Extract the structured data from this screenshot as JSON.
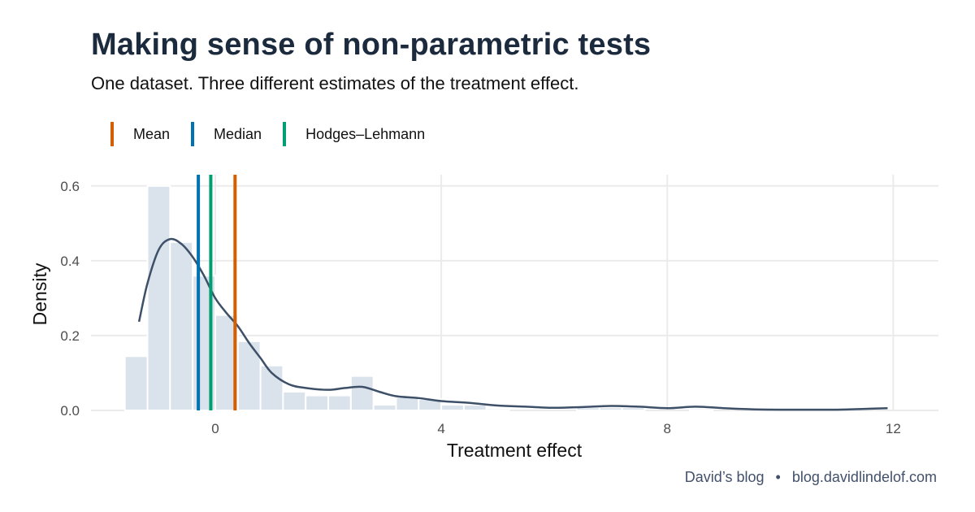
{
  "header": {
    "title": "Making sense of non-parametric tests",
    "subtitle": "One dataset. Three different estimates of the treatment effect."
  },
  "legend": {
    "items": [
      {
        "label": "Mean",
        "color": "#d55e00"
      },
      {
        "label": "Median",
        "color": "#0072b2"
      },
      {
        "label": "Hodges–Lehmann",
        "color": "#009e73"
      }
    ]
  },
  "caption": {
    "blog_name": "David’s blog",
    "separator": "•",
    "url": "blog.davidlindelof.com"
  },
  "chart_data": {
    "type": "bar",
    "xlabel": "Treatment effect",
    "ylabel": "Density",
    "xlim": [
      -2.2,
      12.8
    ],
    "ylim": [
      0,
      0.63
    ],
    "x_ticks": [
      0,
      4,
      8,
      12
    ],
    "y_ticks": [
      0.0,
      0.2,
      0.4,
      0.6
    ],
    "x_tick_labels": [
      "0",
      "4",
      "8",
      "12"
    ],
    "y_tick_labels": [
      "0.0",
      "0.2",
      "0.4",
      "0.6"
    ],
    "grid": true,
    "histogram": {
      "bin_width": 0.4,
      "color": "#dae2ec",
      "bins": [
        {
          "x": -1.4,
          "density": 0.145
        },
        {
          "x": -1.0,
          "density": 0.6
        },
        {
          "x": -0.6,
          "density": 0.45
        },
        {
          "x": -0.2,
          "density": 0.36
        },
        {
          "x": 0.2,
          "density": 0.255
        },
        {
          "x": 0.6,
          "density": 0.185
        },
        {
          "x": 1.0,
          "density": 0.12
        },
        {
          "x": 1.4,
          "density": 0.05
        },
        {
          "x": 1.8,
          "density": 0.04
        },
        {
          "x": 2.2,
          "density": 0.04
        },
        {
          "x": 2.6,
          "density": 0.092
        },
        {
          "x": 3.0,
          "density": 0.015
        },
        {
          "x": 3.4,
          "density": 0.035
        },
        {
          "x": 3.8,
          "density": 0.03
        },
        {
          "x": 4.2,
          "density": 0.015
        },
        {
          "x": 4.6,
          "density": 0.015
        },
        {
          "x": 5.0,
          "density": 0.005
        },
        {
          "x": 6.6,
          "density": 0.008
        },
        {
          "x": 7.0,
          "density": 0.008
        },
        {
          "x": 7.4,
          "density": 0.008
        },
        {
          "x": 8.6,
          "density": 0.005
        }
      ]
    },
    "density_curve": {
      "color": "#3d5068",
      "points": [
        [
          -1.35,
          0.237
        ],
        [
          -1.2,
          0.34
        ],
        [
          -1.0,
          0.43
        ],
        [
          -0.8,
          0.458
        ],
        [
          -0.6,
          0.445
        ],
        [
          -0.4,
          0.41
        ],
        [
          -0.2,
          0.36
        ],
        [
          0.0,
          0.3
        ],
        [
          0.2,
          0.26
        ],
        [
          0.4,
          0.225
        ],
        [
          0.6,
          0.18
        ],
        [
          0.8,
          0.14
        ],
        [
          1.0,
          0.1
        ],
        [
          1.3,
          0.07
        ],
        [
          1.6,
          0.06
        ],
        [
          2.0,
          0.055
        ],
        [
          2.3,
          0.06
        ],
        [
          2.6,
          0.063
        ],
        [
          2.9,
          0.05
        ],
        [
          3.2,
          0.038
        ],
        [
          3.6,
          0.033
        ],
        [
          4.0,
          0.025
        ],
        [
          4.5,
          0.02
        ],
        [
          5.0,
          0.013
        ],
        [
          5.5,
          0.01
        ],
        [
          6.0,
          0.007
        ],
        [
          6.5,
          0.009
        ],
        [
          7.0,
          0.012
        ],
        [
          7.5,
          0.01
        ],
        [
          8.0,
          0.006
        ],
        [
          8.5,
          0.01
        ],
        [
          9.0,
          0.006
        ],
        [
          9.5,
          0.003
        ],
        [
          10.0,
          0.002
        ],
        [
          10.5,
          0.002
        ],
        [
          11.0,
          0.002
        ],
        [
          11.5,
          0.004
        ],
        [
          11.9,
          0.006
        ]
      ]
    },
    "reference_lines": [
      {
        "name": "Mean",
        "x": 0.35,
        "color": "#d55e00"
      },
      {
        "name": "Median",
        "x": -0.3,
        "color": "#0072b2"
      },
      {
        "name": "Hodges–Lehmann",
        "x": -0.08,
        "color": "#009e73"
      }
    ]
  }
}
